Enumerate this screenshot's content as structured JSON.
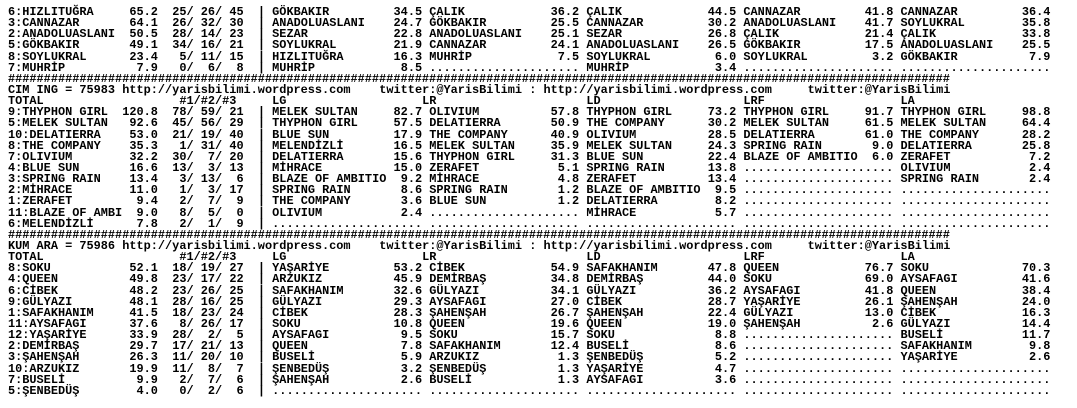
{
  "separator": "####################################################################################################################################",
  "column_separator": "|",
  "placing_separator": "/",
  "empty_cell": ".....................",
  "link_separator": ":",
  "site": "http://yarisbilimi.wordpress.com",
  "twitter": "twitter:@YarisBilimi",
  "column_headers": {
    "total": "TOTAL",
    "placings": "#1/#2/#3",
    "cols": [
      "LG",
      "LR",
      "LD",
      "LRF",
      "LA"
    ]
  },
  "sections": [
    {
      "title": "",
      "rows": [
        {
          "name": "6:HIZLITUĞRA",
          "total": "65.2",
          "placings": [
            "25",
            "26",
            "45"
          ],
          "cells": [
            {
              "name": "GÖKBAKIR",
              "score": "34.5"
            },
            {
              "name": "ÇALIK",
              "score": "36.2"
            },
            {
              "name": "ÇALIK",
              "score": "44.5"
            },
            {
              "name": "CANNAZAR",
              "score": "41.8"
            },
            {
              "name": "CANNAZAR",
              "score": "36.4"
            }
          ]
        },
        {
          "name": "3:CANNAZAR",
          "total": "64.1",
          "placings": [
            "26",
            "32",
            "30"
          ],
          "cells": [
            {
              "name": "ANADOLUASLANI",
              "score": "24.7"
            },
            {
              "name": "GÖKBAKIR",
              "score": "25.5"
            },
            {
              "name": "CANNAZAR",
              "score": "30.2"
            },
            {
              "name": "ANADOLUASLANI",
              "score": "41.7"
            },
            {
              "name": "SOYLUKRAL",
              "score": "35.8"
            }
          ]
        },
        {
          "name": "2:ANADOLUASLANI",
          "total": "50.5",
          "placings": [
            "28",
            "14",
            "23"
          ],
          "cells": [
            {
              "name": "SEZAR",
              "score": "22.8"
            },
            {
              "name": "ANADOLUASLANI",
              "score": "25.1"
            },
            {
              "name": "SEZAR",
              "score": "26.8"
            },
            {
              "name": "ÇALIK",
              "score": "21.4"
            },
            {
              "name": "ÇALIK",
              "score": "33.8"
            }
          ]
        },
        {
          "name": "5:GÖKBAKIR",
          "total": "49.1",
          "placings": [
            "34",
            "16",
            "21"
          ],
          "cells": [
            {
              "name": "SOYLUKRAL",
              "score": "21.9"
            },
            {
              "name": "CANNAZAR",
              "score": "24.1"
            },
            {
              "name": "ANADOLUASLANI",
              "score": "26.5"
            },
            {
              "name": "GÖKBAKIR",
              "score": "17.5"
            },
            {
              "name": "ANADOLUASLANI",
              "score": "25.5"
            }
          ]
        },
        {
          "name": "8:SOYLUKRAL",
          "total": "23.4",
          "placings": [
            "5",
            "11",
            "15"
          ],
          "cells": [
            {
              "name": "HIZLITUĞRA",
              "score": "16.3"
            },
            {
              "name": "MUHRİP",
              "score": "7.5"
            },
            {
              "name": "SOYLUKRAL",
              "score": "6.0"
            },
            {
              "name": "SOYLUKRAL",
              "score": "3.2"
            },
            {
              "name": "GÖKBAKIR",
              "score": "7.9"
            }
          ]
        },
        {
          "name": "7:MUHRİP",
          "total": "7.9",
          "placings": [
            "0",
            "6",
            "8"
          ],
          "cells": [
            {
              "name": "MUHRİP",
              "score": "8.5"
            },
            null,
            {
              "name": "MUHRİP",
              "score": "3.4"
            },
            null,
            null
          ]
        }
      ]
    },
    {
      "title": "CIM ING = 75983",
      "rows": [
        {
          "name": "9:THYPHON GIRL",
          "total": "120.8",
          "placings": [
            "78",
            "59",
            "21"
          ],
          "cells": [
            {
              "name": "MELEK SULTAN",
              "score": "82.7"
            },
            {
              "name": "OLIVIUM",
              "score": "57.8"
            },
            {
              "name": "THYPHON GIRL",
              "score": "73.2"
            },
            {
              "name": "THYPHON GIRL",
              "score": "91.7"
            },
            {
              "name": "THYPHON GIRL",
              "score": "98.8"
            }
          ]
        },
        {
          "name": "5:MELEK SULTAN",
          "total": "92.6",
          "placings": [
            "45",
            "56",
            "29"
          ],
          "cells": [
            {
              "name": "THYPHON GIRL",
              "score": "57.5"
            },
            {
              "name": "DELATIERRA",
              "score": "50.9"
            },
            {
              "name": "THE COMPANY",
              "score": "30.2"
            },
            {
              "name": "MELEK SULTAN",
              "score": "61.5"
            },
            {
              "name": "MELEK SULTAN",
              "score": "64.4"
            }
          ]
        },
        {
          "name": "10:DELATIERRA",
          "total": "53.0",
          "placings": [
            "21",
            "19",
            "40"
          ],
          "cells": [
            {
              "name": "BLUE SUN",
              "score": "17.9"
            },
            {
              "name": "THE COMPANY",
              "score": "40.9"
            },
            {
              "name": "OLIVIUM",
              "score": "28.5"
            },
            {
              "name": "DELATIERRA",
              "score": "61.0"
            },
            {
              "name": "THE COMPANY",
              "score": "28.2"
            }
          ]
        },
        {
          "name": "8:THE COMPANY",
          "total": "35.3",
          "placings": [
            "1",
            "31",
            "40"
          ],
          "cells": [
            {
              "name": "MELENDİZLİ",
              "score": "16.5"
            },
            {
              "name": "MELEK SULTAN",
              "score": "35.9"
            },
            {
              "name": "MELEK SULTAN",
              "score": "24.3"
            },
            {
              "name": "SPRING RAIN",
              "score": "9.0"
            },
            {
              "name": "DELATIERRA",
              "score": "25.8"
            }
          ]
        },
        {
          "name": "7:OLIVIUM",
          "total": "32.2",
          "placings": [
            "30",
            "7",
            "20"
          ],
          "cells": [
            {
              "name": "DELATIERRA",
              "score": "15.6"
            },
            {
              "name": "THYPHON GIRL",
              "score": "31.3"
            },
            {
              "name": "BLUE SUN",
              "score": "22.4"
            },
            {
              "name": "BLAZE OF AMBITIO",
              "score": "6.0"
            },
            {
              "name": "ZERAFET",
              "score": "7.2"
            }
          ]
        },
        {
          "name": "4:BLUE SUN",
          "total": "16.6",
          "placings": [
            "13",
            "3",
            "13"
          ],
          "cells": [
            {
              "name": "MİHRACE",
              "score": "15.0"
            },
            {
              "name": "ZERAFET",
              "score": "5.1"
            },
            {
              "name": "SPRING RAIN",
              "score": "13.8"
            },
            null,
            {
              "name": "OLIVIUM",
              "score": "2.4"
            }
          ]
        },
        {
          "name": "3:SPRING RAIN",
          "total": "13.4",
          "placings": [
            "3",
            "13",
            "6"
          ],
          "cells": [
            {
              "name": "BLAZE OF AMBITIO",
              "score": "9.2"
            },
            {
              "name": "MİHRACE",
              "score": "4.8"
            },
            {
              "name": "ZERAFET",
              "score": "13.4"
            },
            null,
            {
              "name": "SPRING RAIN",
              "score": "2.4"
            }
          ]
        },
        {
          "name": "2:MİHRACE",
          "total": "11.0",
          "placings": [
            "1",
            "3",
            "17"
          ],
          "cells": [
            {
              "name": "SPRING RAIN",
              "score": "8.6"
            },
            {
              "name": "SPRING RAIN",
              "score": "1.2"
            },
            {
              "name": "BLAZE OF AMBITIO",
              "score": "9.5"
            },
            null,
            null
          ]
        },
        {
          "name": "1:ZERAFET",
          "total": "9.4",
          "placings": [
            "2",
            "7",
            "9"
          ],
          "cells": [
            {
              "name": "THE COMPANY",
              "score": "3.6"
            },
            {
              "name": "BLUE SUN",
              "score": "1.2"
            },
            {
              "name": "DELATIERRA",
              "score": "8.2"
            },
            null,
            null
          ]
        },
        {
          "name": "11:BLAZE OF AMBI",
          "total": "9.0",
          "placings": [
            "8",
            "5",
            "0"
          ],
          "cells": [
            {
              "name": "OLIVIUM",
              "score": "2.4"
            },
            null,
            {
              "name": "MİHRACE",
              "score": "5.7"
            },
            null,
            null
          ]
        },
        {
          "name": "6:MELENDİZLİ",
          "total": "7.8",
          "placings": [
            "2",
            "1",
            "9"
          ],
          "cells": [
            null,
            null,
            null,
            null,
            null
          ]
        }
      ]
    },
    {
      "title": "KUM ARA = 75986",
      "rows": [
        {
          "name": "8:SOKU",
          "total": "52.1",
          "placings": [
            "18",
            "19",
            "27"
          ],
          "cells": [
            {
              "name": "YAŞARİYE",
              "score": "53.2"
            },
            {
              "name": "CİBEK",
              "score": "54.9"
            },
            {
              "name": "SAFAKHANIM",
              "score": "47.8"
            },
            {
              "name": "QUEEN",
              "score": "76.7"
            },
            {
              "name": "SOKU",
              "score": "70.3"
            }
          ]
        },
        {
          "name": "4:QUEEN",
          "total": "49.8",
          "placings": [
            "23",
            "17",
            "22"
          ],
          "cells": [
            {
              "name": "ARZUKIZ",
              "score": "45.9"
            },
            {
              "name": "DEMİRBAŞ",
              "score": "34.8"
            },
            {
              "name": "DEMİRBAŞ",
              "score": "44.0"
            },
            {
              "name": "SOKU",
              "score": "69.0"
            },
            {
              "name": "AYSAFAGI",
              "score": "41.6"
            }
          ]
        },
        {
          "name": "6:CİBEK",
          "total": "48.2",
          "placings": [
            "23",
            "26",
            "25"
          ],
          "cells": [
            {
              "name": "SAFAKHANIM",
              "score": "32.6"
            },
            {
              "name": "GÜLYAZI",
              "score": "34.1"
            },
            {
              "name": "GÜLYAZI",
              "score": "36.2"
            },
            {
              "name": "AYSAFAGI",
              "score": "41.8"
            },
            {
              "name": "QUEEN",
              "score": "38.4"
            }
          ]
        },
        {
          "name": "9:GÜLYAZI",
          "total": "48.1",
          "placings": [
            "28",
            "16",
            "25"
          ],
          "cells": [
            {
              "name": "GÜLYAZI",
              "score": "29.3"
            },
            {
              "name": "AYSAFAGI",
              "score": "27.0"
            },
            {
              "name": "CİBEK",
              "score": "28.7"
            },
            {
              "name": "YAŞARİYE",
              "score": "26.1"
            },
            {
              "name": "ŞAHENŞAH",
              "score": "24.0"
            }
          ]
        },
        {
          "name": "1:SAFAKHANIM",
          "total": "41.5",
          "placings": [
            "18",
            "23",
            "24"
          ],
          "cells": [
            {
              "name": "CİBEK",
              "score": "28.3"
            },
            {
              "name": "ŞAHENŞAH",
              "score": "26.7"
            },
            {
              "name": "ŞAHENŞAH",
              "score": "22.4"
            },
            {
              "name": "GÜLYAZI",
              "score": "13.0"
            },
            {
              "name": "CİBEK",
              "score": "16.3"
            }
          ]
        },
        {
          "name": "11:AYSAFAGI",
          "total": "37.6",
          "placings": [
            "8",
            "26",
            "17"
          ],
          "cells": [
            {
              "name": "SOKU",
              "score": "10.8"
            },
            {
              "name": "QUEEN",
              "score": "19.6"
            },
            {
              "name": "QUEEN",
              "score": "19.0"
            },
            {
              "name": "ŞAHENŞAH",
              "score": "2.6"
            },
            {
              "name": "GÜLYAZI",
              "score": "14.4"
            }
          ]
        },
        {
          "name": "12:YAŞARİYE",
          "total": "33.9",
          "placings": [
            "28",
            "2",
            "5"
          ],
          "cells": [
            {
              "name": "AYSAFAGI",
              "score": "9.5"
            },
            {
              "name": "SOKU",
              "score": "15.7"
            },
            {
              "name": "SOKU",
              "score": "8.8"
            },
            null,
            {
              "name": "BUSELİ",
              "score": "11.7"
            }
          ]
        },
        {
          "name": "2:DEMİRBAŞ",
          "total": "29.7",
          "placings": [
            "17",
            "21",
            "13"
          ],
          "cells": [
            {
              "name": "QUEEN",
              "score": "7.8"
            },
            {
              "name": "SAFAKHANIM",
              "score": "12.4"
            },
            {
              "name": "BUSELİ",
              "score": "8.6"
            },
            null,
            {
              "name": "SAFAKHANIM",
              "score": "9.8"
            }
          ]
        },
        {
          "name": "3:ŞAHENŞAH",
          "total": "26.3",
          "placings": [
            "11",
            "20",
            "10"
          ],
          "cells": [
            {
              "name": "BUSELİ",
              "score": "5.9"
            },
            {
              "name": "ARZUKIZ",
              "score": "1.3"
            },
            {
              "name": "ŞENBEDÜŞ",
              "score": "5.2"
            },
            null,
            {
              "name": "YAŞARİYE",
              "score": "2.6"
            }
          ]
        },
        {
          "name": "10:ARZUKIZ",
          "total": "19.9",
          "placings": [
            "11",
            "8",
            "7"
          ],
          "cells": [
            {
              "name": "ŞENBEDÜŞ",
              "score": "3.2"
            },
            {
              "name": "ŞENBEDÜŞ",
              "score": "1.3"
            },
            {
              "name": "YAŞARİYE",
              "score": "4.7"
            },
            null,
            null
          ]
        },
        {
          "name": "7:BUSELİ",
          "total": "9.9",
          "placings": [
            "2",
            "7",
            "6"
          ],
          "cells": [
            {
              "name": "ŞAHENŞAH",
              "score": "2.6"
            },
            {
              "name": "BUSELİ",
              "score": "1.3"
            },
            {
              "name": "AYSAFAGI",
              "score": "3.6"
            },
            null,
            null
          ]
        },
        {
          "name": "5:ŞENBEDÜŞ",
          "total": "4.0",
          "placings": [
            "0",
            "2",
            "6"
          ],
          "cells": [
            null,
            null,
            null,
            null,
            null
          ]
        }
      ]
    }
  ]
}
